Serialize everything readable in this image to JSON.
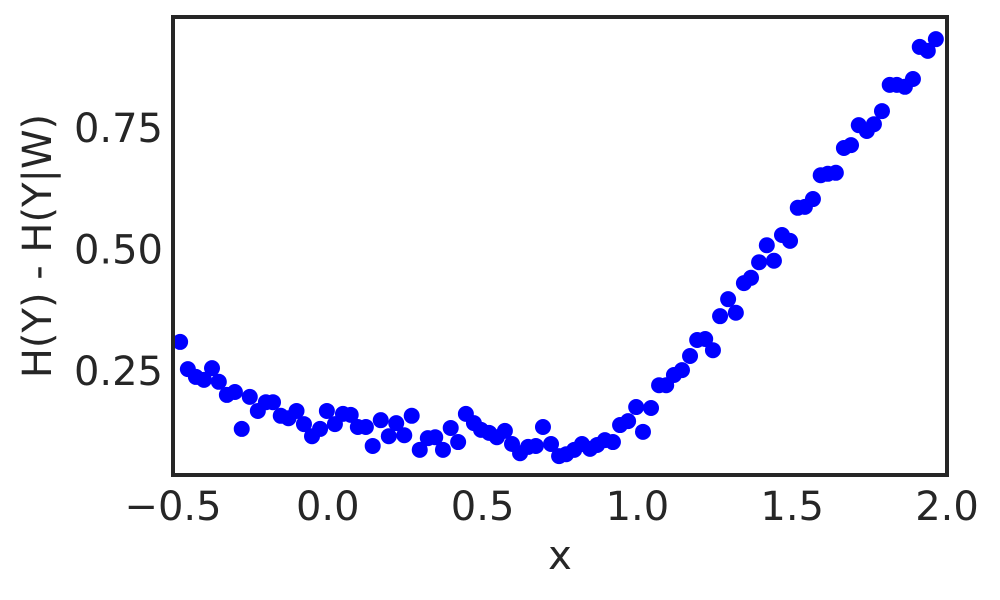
{
  "chart_data": {
    "type": "scatter",
    "xlabel": "x",
    "ylabel": "H(Y) - H(Y|W)",
    "color": "#0000ff",
    "x": [
      -0.477,
      -0.452,
      -0.426,
      -0.4,
      -0.374,
      -0.352,
      -0.326,
      -0.3,
      -0.278,
      -0.252,
      -0.226,
      -0.2,
      -0.177,
      -0.152,
      -0.127,
      -0.101,
      -0.077,
      -0.051,
      -0.025,
      -0.003,
      0.023,
      0.049,
      0.074,
      0.097,
      0.123,
      0.145,
      0.171,
      0.197,
      0.221,
      0.247,
      0.271,
      0.297,
      0.323,
      0.347,
      0.372,
      0.397,
      0.421,
      0.446,
      0.472,
      0.495,
      0.521,
      0.546,
      0.572,
      0.595,
      0.621,
      0.647,
      0.672,
      0.695,
      0.721,
      0.747,
      0.77,
      0.796,
      0.821,
      0.847,
      0.87,
      0.895,
      0.921,
      0.944,
      0.97,
      0.996,
      1.018,
      1.044,
      1.07,
      1.093,
      1.118,
      1.144,
      1.17,
      1.193,
      1.219,
      1.244,
      1.267,
      1.293,
      1.318,
      1.344,
      1.367,
      1.393,
      1.418,
      1.441,
      1.467,
      1.493,
      1.518,
      1.541,
      1.567,
      1.592,
      1.615,
      1.641,
      1.667,
      1.69,
      1.715,
      1.741,
      1.764,
      1.79,
      1.815,
      1.838,
      1.864,
      1.89,
      1.912,
      1.938,
      1.964
    ],
    "values": [
      0.316,
      0.26,
      0.244,
      0.238,
      0.262,
      0.234,
      0.207,
      0.213,
      0.137,
      0.203,
      0.174,
      0.192,
      0.192,
      0.164,
      0.159,
      0.174,
      0.147,
      0.122,
      0.137,
      0.174,
      0.147,
      0.168,
      0.166,
      0.141,
      0.141,
      0.102,
      0.155,
      0.122,
      0.149,
      0.124,
      0.164,
      0.094,
      0.118,
      0.12,
      0.094,
      0.139,
      0.11,
      0.168,
      0.149,
      0.135,
      0.129,
      0.12,
      0.133,
      0.106,
      0.087,
      0.1,
      0.102,
      0.141,
      0.106,
      0.081,
      0.085,
      0.094,
      0.106,
      0.096,
      0.104,
      0.114,
      0.11,
      0.145,
      0.153,
      0.182,
      0.131,
      0.18,
      0.227,
      0.227,
      0.248,
      0.258,
      0.287,
      0.32,
      0.322,
      0.299,
      0.369,
      0.404,
      0.376,
      0.437,
      0.448,
      0.48,
      0.515,
      0.483,
      0.536,
      0.524,
      0.592,
      0.594,
      0.61,
      0.659,
      0.662,
      0.664,
      0.715,
      0.721,
      0.762,
      0.75,
      0.764,
      0.791,
      0.845,
      0.845,
      0.841,
      0.857,
      0.923,
      0.915,
      0.939
    ],
    "xlim": [
      -0.5,
      2.0
    ],
    "xticks": [
      {
        "value": -0.5,
        "label": "−0.5"
      },
      {
        "value": 0,
        "label": "0.0"
      },
      0.5,
      {
        "value": 1.0,
        "label": "1.0"
      },
      1.5,
      {
        "value": 2.0,
        "label": "2.0"
      }
    ],
    "ylim": [
      0.0422,
      0.9846
    ],
    "yticks": [
      0.25,
      {
        "value": 0.5,
        "label": "0.50"
      },
      0.75
    ],
    "grid": false
  }
}
